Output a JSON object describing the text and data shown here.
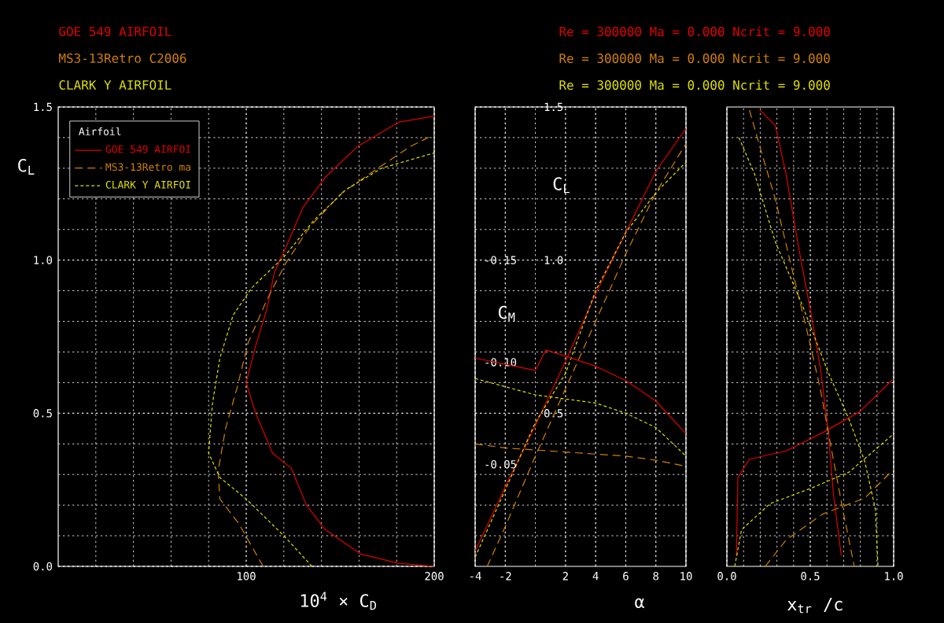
{
  "chart_data": [
    {
      "type": "line",
      "xlabel": "10$^{4}$ × C$_{D}$",
      "ylabel": "C$_{L}$",
      "legend_title": "Airfoil",
      "legend": "top left",
      "grid": true,
      "xlim": [
        0,
        200
      ],
      "ylim": [
        0,
        1.5
      ],
      "xticks": [
        {
          "value": 20,
          "label": null
        },
        {
          "value": 40,
          "label": null
        },
        {
          "value": 60,
          "label": null
        },
        {
          "value": 80,
          "label": null
        },
        {
          "value": 100,
          "label": "100"
        },
        {
          "value": 120,
          "label": null
        },
        {
          "value": 140,
          "label": null
        },
        {
          "value": 160,
          "label": null
        },
        {
          "value": 180,
          "label": null
        },
        {
          "value": 200,
          "label": "200"
        }
      ],
      "yticks": [
        {
          "value": 0,
          "label": "0.0"
        },
        {
          "value": 0.1,
          "label": null
        },
        {
          "value": 0.2,
          "label": null
        },
        {
          "value": 0.3,
          "label": null
        },
        {
          "value": 0.4,
          "label": null
        },
        {
          "value": 0.5,
          "label": "0.5"
        },
        {
          "value": 0.6,
          "label": null
        },
        {
          "value": 0.7,
          "label": null
        },
        {
          "value": 0.8,
          "label": null
        },
        {
          "value": 0.9,
          "label": null
        },
        {
          "value": 1.0,
          "label": "1.0"
        },
        {
          "value": 1.1,
          "label": null
        },
        {
          "value": 1.2,
          "label": null
        },
        {
          "value": 1.3,
          "label": null
        },
        {
          "value": 1.4,
          "label": null
        },
        {
          "value": 1.5,
          "label": "1.5"
        }
      ],
      "annotations": [
        "GOE 549 AIRFOIL",
        "MS3-13Retro C2006",
        "CLARK Y AIRFOIL",
        "Re = 300000   Ma = 0.000   Ncrit = 9.000",
        "Re = 300000   Ma = 0.000   Ncrit = 9.000",
        "Re = 300000   Ma = 0.000   Ncrit = 9.000"
      ],
      "series": [
        {
          "name": "GOE 549 AIRFOI",
          "color": "#e00000",
          "line_style": "solid",
          "x": [
            200,
            181,
            161,
            142,
            132,
            124,
            114,
            105,
            100,
            105,
            111,
            115,
            121,
            130,
            142,
            159,
            181,
            200
          ],
          "values": [
            0,
            0.01,
            0.04,
            0.12,
            0.2,
            0.32,
            0.37,
            0.5,
            0.6,
            0.72,
            0.84,
            0.96,
            1.04,
            1.17,
            1.27,
            1.37,
            1.45,
            1.47
          ]
        },
        {
          "name": "MS3-13Retro ma",
          "color": "#d08000",
          "line_style": "dashed",
          "x": [
            109,
            96,
            86,
            85,
            89,
            95,
            101,
            111,
            121,
            134,
            151,
            170,
            187,
            200
          ],
          "values": [
            0,
            0.14,
            0.22,
            0.31,
            0.45,
            0.58,
            0.73,
            0.87,
            0.99,
            1.11,
            1.22,
            1.3,
            1.37,
            1.41
          ]
        },
        {
          "name": "CLARK Y AIRFOI",
          "color": "#e0e000",
          "line_style": "dotted",
          "x": [
            135,
            120,
            100,
            86,
            80,
            82,
            86,
            93,
            103,
            120,
            136,
            153,
            172,
            200
          ],
          "values": [
            0,
            0.1,
            0.22,
            0.29,
            0.37,
            0.53,
            0.68,
            0.82,
            0.91,
            1.01,
            1.13,
            1.23,
            1.3,
            1.35
          ]
        }
      ]
    },
    {
      "type": "line",
      "xlabel": "α",
      "ylabel": "C$_{L}$",
      "y2label": "C$_{M}$",
      "grid": true,
      "xlim": [
        -4,
        10
      ],
      "ylim": [
        0,
        1.5
      ],
      "y2lim": [
        0,
        -0.225
      ],
      "xticks": [
        {
          "value": -4,
          "label": "-4"
        },
        {
          "value": -2,
          "label": "-2"
        },
        {
          "value": 0,
          "label": null
        },
        {
          "value": 2,
          "label": "2"
        },
        {
          "value": 4,
          "label": "4"
        },
        {
          "value": 6,
          "label": "6"
        },
        {
          "value": 8,
          "label": "8"
        },
        {
          "value": 10,
          "label": "10"
        }
      ],
      "yticks": [
        {
          "value": 0.1,
          "label": null
        },
        {
          "value": 0.2,
          "label": null
        },
        {
          "value": 0.3,
          "label": null
        },
        {
          "value": 0.4,
          "label": null
        },
        {
          "value": 0.5,
          "label": "0.5"
        },
        {
          "value": 0.6,
          "label": null
        },
        {
          "value": 0.7,
          "label": null
        },
        {
          "value": 0.8,
          "label": null
        },
        {
          "value": 0.9,
          "label": null
        },
        {
          "value": 1.0,
          "label": "1.0"
        },
        {
          "value": 1.1,
          "label": null
        },
        {
          "value": 1.2,
          "label": null
        },
        {
          "value": 1.3,
          "label": null
        },
        {
          "value": 1.4,
          "label": null
        },
        {
          "value": 1.5,
          "label": "1.5"
        }
      ],
      "y2ticks": [
        {
          "value": -0.05,
          "label": "-0.05"
        },
        {
          "value": -0.1,
          "label": "-0.10"
        },
        {
          "value": -0.15,
          "label": "-0.15"
        }
      ],
      "series": [
        {
          "color": "#e00000",
          "line_style": "solid",
          "x": [
            -4,
            -2,
            0,
            2,
            4,
            6,
            8,
            10
          ],
          "values": [
            0.05,
            0.26,
            0.46,
            0.67,
            0.89,
            1.09,
            1.29,
            1.43
          ]
        },
        {
          "color": "#d08000",
          "line_style": "dashed",
          "x": [
            -3.2,
            -2,
            0,
            2,
            4,
            6,
            8,
            10
          ],
          "values": [
            0,
            0.13,
            0.36,
            0.58,
            0.8,
            1.02,
            1.22,
            1.38
          ]
        },
        {
          "color": "#e0e000",
          "line_style": "dotted",
          "x": [
            -4,
            -2,
            0,
            2,
            4,
            6,
            8,
            10
          ],
          "values": [
            0.03,
            0.25,
            0.47,
            0.63,
            0.9,
            1.09,
            1.22,
            1.32
          ]
        },
        {
          "color": "#e00000",
          "line_style": "solid",
          "axis": "y2",
          "x": [
            -4,
            -2,
            0,
            0.7,
            2,
            4,
            6,
            8,
            10
          ],
          "values": [
            -0.102,
            -0.099,
            -0.096,
            -0.106,
            -0.103,
            -0.098,
            -0.091,
            -0.081,
            -0.065
          ]
        },
        {
          "color": "#d08000",
          "line_style": "dashed",
          "axis": "y2",
          "x": [
            -4,
            -2,
            0,
            2,
            4,
            6,
            8,
            10
          ],
          "values": [
            -0.06,
            -0.058,
            -0.057,
            -0.056,
            -0.055,
            -0.054,
            -0.052,
            -0.049
          ]
        },
        {
          "color": "#e0e000",
          "line_style": "dotted",
          "axis": "y2",
          "x": [
            -4,
            -2,
            0,
            2,
            4,
            6,
            8,
            10
          ],
          "values": [
            -0.092,
            -0.088,
            -0.084,
            -0.082,
            -0.08,
            -0.075,
            -0.068,
            -0.054
          ]
        }
      ]
    },
    {
      "type": "line",
      "xlabel": "x$_{tr}$ /c",
      "grid": true,
      "tick_labels": "x",
      "xlim": [
        0,
        1
      ],
      "ylim": [
        0,
        1.5
      ],
      "xticks": [
        {
          "value": 0,
          "label": "0.0"
        },
        {
          "value": 0.1,
          "label": null
        },
        {
          "value": 0.2,
          "label": null
        },
        {
          "value": 0.3,
          "label": null
        },
        {
          "value": 0.4,
          "label": null
        },
        {
          "value": 0.5,
          "label": "0.5"
        },
        {
          "value": 0.6,
          "label": null
        },
        {
          "value": 0.7,
          "label": null
        },
        {
          "value": 0.8,
          "label": null
        },
        {
          "value": 0.9,
          "label": null
        },
        {
          "value": 1,
          "label": "1.0"
        }
      ],
      "yticks": [
        {
          "value": 0.1,
          "label": null
        },
        {
          "value": 0.2,
          "label": null
        },
        {
          "value": 0.3,
          "label": null
        },
        {
          "value": 0.4,
          "label": null
        },
        {
          "value": 0.5,
          "label": null
        },
        {
          "value": 0.6,
          "label": null
        },
        {
          "value": 0.7,
          "label": null
        },
        {
          "value": 0.8,
          "label": null
        },
        {
          "value": 0.9,
          "label": null
        },
        {
          "value": 1.0,
          "label": null
        },
        {
          "value": 1.1,
          "label": null
        },
        {
          "value": 1.2,
          "label": null
        },
        {
          "value": 1.3,
          "label": null
        },
        {
          "value": 1.4,
          "label": null
        }
      ],
      "series": [
        {
          "color": "#e00000",
          "line_style": "solid",
          "x": [
            0.198,
            0.29,
            0.355,
            0.434,
            0.513,
            0.56,
            0.607,
            0.638,
            0.686
          ],
          "values": [
            1.49,
            1.44,
            1.28,
            1.03,
            0.8,
            0.65,
            0.445,
            0.24,
            0.034
          ]
        },
        {
          "color": "#e00000",
          "line_style": "solid",
          "x": [
            0.057,
            0.066,
            0.135,
            0.355,
            0.575,
            0.796,
            0.99
          ],
          "values": [
            0.034,
            0.29,
            0.35,
            0.377,
            0.437,
            0.505,
            0.608
          ]
        },
        {
          "color": "#d08000",
          "line_style": "dashed",
          "x": [
            0.135,
            0.198,
            0.29,
            0.387,
            0.48,
            0.56,
            0.623,
            0.7,
            0.764
          ],
          "values": [
            1.49,
            1.37,
            1.2,
            0.978,
            0.77,
            0.58,
            0.394,
            0.171,
            0
          ]
        },
        {
          "color": "#d08000",
          "line_style": "dashed",
          "x": [
            0.23,
            0.355,
            0.575,
            0.827,
            0.984
          ],
          "values": [
            0,
            0.086,
            0.171,
            0.223,
            0.308
          ]
        },
        {
          "color": "#e0e000",
          "line_style": "dotted",
          "x": [
            0.072,
            0.167,
            0.29,
            0.45,
            0.607,
            0.733,
            0.827,
            0.89,
            0.906
          ],
          "values": [
            1.4,
            1.28,
            1.06,
            0.856,
            0.634,
            0.479,
            0.342,
            0.188,
            0
          ]
        },
        {
          "color": "#e0e000",
          "line_style": "dotted",
          "x": [
            0.047,
            0.088,
            0.26,
            0.513,
            0.733,
            0.99
          ],
          "values": [
            0,
            0.12,
            0.205,
            0.257,
            0.308,
            0.428
          ]
        }
      ]
    }
  ]
}
